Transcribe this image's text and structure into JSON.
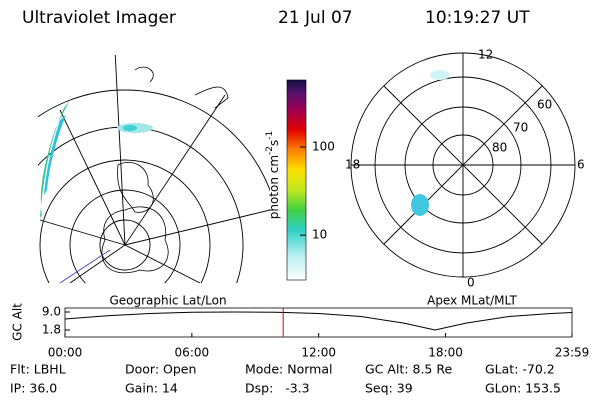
{
  "header": {
    "instrument": "Ultraviolet Imager",
    "date": "21 Jul 07",
    "time": "10:19:27 UT"
  },
  "left_panel": {
    "label": "Geographic Lat/Lon"
  },
  "right_panel": {
    "label": "Apex MLat/MLT",
    "mlt_labels": [
      "12",
      "18",
      "6",
      "0"
    ],
    "mlat_labels": [
      "60",
      "70",
      "80"
    ]
  },
  "colorbar": {
    "label": "photon cm",
    "exp1": "-2",
    "unit2": "s",
    "exp2": "-1",
    "log_scale": true,
    "ylim": [
      3.1,
      575
    ],
    "yticks": [
      10,
      100
    ]
  },
  "chart_data": {
    "type": "line",
    "ylabel": "GC Alt",
    "x": [
      0,
      2,
      4,
      6,
      8,
      10,
      12,
      14,
      16,
      17.5,
      19,
      21,
      23,
      24
    ],
    "series": [
      {
        "color": "#000000",
        "values": [
          6.2,
          7.5,
          8.4,
          8.9,
          9.0,
          8.9,
          8.4,
          7.2,
          4.6,
          1.8,
          4.6,
          7.2,
          8.4,
          8.8
        ]
      }
    ],
    "marker_x": 10.32,
    "marker_color": "#e00000",
    "xlim": [
      0,
      23.98
    ],
    "ylim": [
      -1.0,
      10.6
    ],
    "xticks": [
      {
        "value": 0,
        "label": "00:00"
      },
      {
        "value": 6,
        "label": "06:00"
      },
      {
        "value": 12,
        "label": "12:00"
      },
      {
        "value": 18,
        "label": "18:00"
      },
      {
        "value": 23.98,
        "label": "23:59"
      }
    ],
    "yticks": [
      {
        "value": 9.0,
        "label": "9.0"
      },
      1.8
    ]
  },
  "footer": {
    "rows": [
      [
        "Flt: LBHL",
        "Door: Open",
        "Mode: Normal",
        "GC Alt: 8.5 Re",
        "GLat: -70.2"
      ],
      [
        "IP: 36.0",
        "Gain: 14",
        "Dsp:   -3.3",
        "Seq: 39",
        "GLon: 153.5"
      ]
    ]
  }
}
